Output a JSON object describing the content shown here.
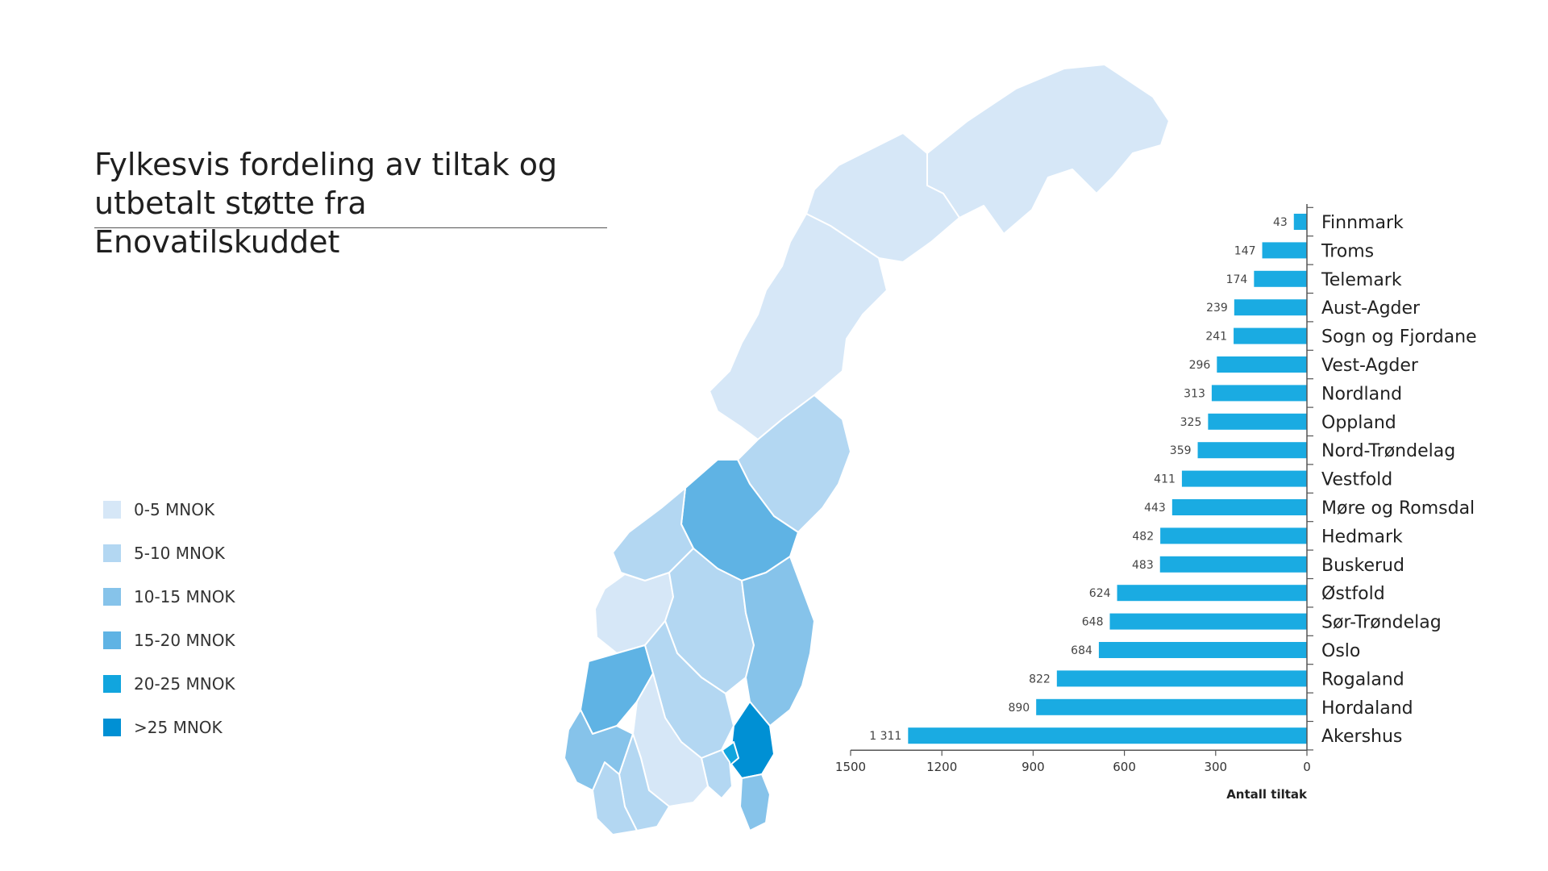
{
  "title_line1": "Fylkesvis fordeling av tiltak og",
  "title_line2": "utbetalt støtte fra Enovatilskuddet",
  "legend": [
    {
      "label": "0-5 MNOK",
      "color": "#d6e7f7"
    },
    {
      "label": "5-10 MNOK",
      "color": "#b3d7f2"
    },
    {
      "label": "10-15 MNOK",
      "color": "#86c3ea"
    },
    {
      "label": "15-20 MNOK",
      "color": "#5fb3e4"
    },
    {
      "label": "20-25 MNOK",
      "color": "#11a5de"
    },
    {
      "label": ">25 MNOK",
      "color": "#0090d4"
    }
  ],
  "colors": {
    "bar": "#1aabe2",
    "axis": "#555555",
    "map_border": "#ffffff"
  },
  "chart_data": {
    "type": "bar",
    "orientation": "horizontal",
    "direction": "right-to-left",
    "categories": [
      "Finnmark",
      "Troms",
      "Telemark",
      "Aust-Agder",
      "Sogn og Fjordane",
      "Vest-Agder",
      "Nordland",
      "Oppland",
      "Nord-Trøndelag",
      "Vestfold",
      "Møre og Romsdal",
      "Hedmark",
      "Buskerud",
      "Østfold",
      "Sør-Trøndelag",
      "Oslo",
      "Rogaland",
      "Hordaland",
      "Akershus"
    ],
    "values": [
      43,
      147,
      174,
      239,
      241,
      296,
      313,
      325,
      359,
      411,
      443,
      482,
      483,
      624,
      648,
      684,
      822,
      890,
      1311
    ],
    "value_labels": [
      "43",
      "147",
      "174",
      "239",
      "241",
      "296",
      "313",
      "325",
      "359",
      "411",
      "443",
      "482",
      "483",
      "624",
      "648",
      "684",
      "822",
      "890",
      "1 311"
    ],
    "xlim": [
      0,
      1500
    ],
    "xticks": [
      1500,
      1200,
      900,
      600,
      300,
      0
    ],
    "xlabel": "Antall tiltak",
    "grid": false
  },
  "map": {
    "regions": [
      {
        "name": "Finnmark",
        "level": 0
      },
      {
        "name": "Troms",
        "level": 0
      },
      {
        "name": "Nordland",
        "level": 0
      },
      {
        "name": "Nord-Trøndelag",
        "level": 1
      },
      {
        "name": "Sør-Trøndelag",
        "level": 3
      },
      {
        "name": "Møre og Romsdal",
        "level": 1
      },
      {
        "name": "Sogn og Fjordane",
        "level": 0
      },
      {
        "name": "Oppland",
        "level": 1
      },
      {
        "name": "Hedmark",
        "level": 2
      },
      {
        "name": "Hordaland",
        "level": 3
      },
      {
        "name": "Buskerud",
        "level": 1
      },
      {
        "name": "Akershus",
        "level": 5
      },
      {
        "name": "Oslo",
        "level": 4
      },
      {
        "name": "Østfold",
        "level": 2
      },
      {
        "name": "Vestfold",
        "level": 1
      },
      {
        "name": "Telemark",
        "level": 0
      },
      {
        "name": "Aust-Agder",
        "level": 1
      },
      {
        "name": "Vest-Agder",
        "level": 1
      },
      {
        "name": "Rogaland",
        "level": 2
      }
    ]
  }
}
